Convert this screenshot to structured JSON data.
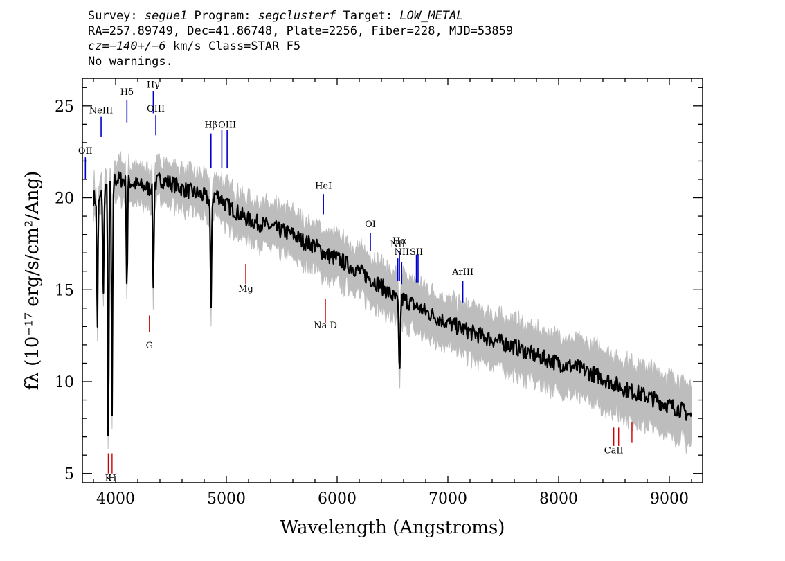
{
  "header": {
    "line1": {
      "survey_label": "Survey: ",
      "survey": "segue1",
      "program_label": " Program: ",
      "program": "segclusterf",
      "target_label": " Target: ",
      "target": "LOW_METAL"
    },
    "line2": "RA=257.89749, Dec=41.86748, Plate=2256, Fiber=228, MJD=53859",
    "line3": {
      "cz": "cz=−140+/−6",
      "rest": " km/s Class=STAR F5"
    },
    "line4": "No warnings."
  },
  "chart_data": {
    "type": "line",
    "xlabel": "Wavelength (Angstroms)",
    "ylabel": "fλ (10⁻¹⁷ erg/s/cm²/Ang)",
    "xlim": [
      3700,
      9300
    ],
    "ylim": [
      4.5,
      26.5
    ],
    "x_ticks": [
      4000,
      5000,
      6000,
      7000,
      8000,
      9000
    ],
    "y_ticks": [
      5,
      10,
      15,
      20,
      25
    ],
    "grid": false,
    "colors": {
      "flux": "#000000",
      "error_band": "#bdbdbd",
      "emission_line": "#0000cc",
      "absorption_line": "#cc0000"
    },
    "series": [
      {
        "x": [
          3800,
          3850,
          3900,
          3950,
          4000,
          4050,
          4100,
          4150,
          4200,
          4250,
          4300,
          4350,
          4400,
          4450,
          4500,
          4600,
          4700,
          4800,
          4861,
          4900,
          4950,
          5000,
          5100,
          5200,
          5300,
          5400,
          5500,
          5600,
          5700,
          5800,
          5900,
          6000,
          6200,
          6400,
          6562,
          6600,
          6800,
          7000,
          7200,
          7400,
          7600,
          7800,
          8000,
          8200,
          8400,
          8600,
          8800,
          9000,
          9100,
          9200
        ],
        "y": [
          20.0,
          19.8,
          20.5,
          20.8,
          21.0,
          21.0,
          20.9,
          20.8,
          20.7,
          20.6,
          20.5,
          20.7,
          21.0,
          20.9,
          20.8,
          20.5,
          20.3,
          20.1,
          19.8,
          20.2,
          20.0,
          19.6,
          19.2,
          18.8,
          18.6,
          18.4,
          18.2,
          18.0,
          17.6,
          17.4,
          16.9,
          16.7,
          16.0,
          15.2,
          14.3,
          14.5,
          13.8,
          13.2,
          12.7,
          12.3,
          11.9,
          11.4,
          11.0,
          10.7,
          10.2,
          9.6,
          9.2,
          8.7,
          8.5,
          8.1
        ]
      }
    ],
    "absorption_dips": [
      {
        "x": 3835,
        "y": 13.0
      },
      {
        "x": 3889,
        "y": 14.5
      },
      {
        "x": 3934,
        "y": 6.3
      },
      {
        "x": 3968,
        "y": 7.8
      },
      {
        "x": 4102,
        "y": 15.0
      },
      {
        "x": 4340,
        "y": 15.0
      },
      {
        "x": 4861,
        "y": 13.5
      },
      {
        "x": 6563,
        "y": 10.5
      }
    ],
    "emission_lines": [
      {
        "label": "OII",
        "x": 3727,
        "y0": 21.0,
        "y1": 22.2,
        "label_y": 22.4
      },
      {
        "label": "NeIII",
        "x": 3869,
        "y0": 23.3,
        "y1": 24.4,
        "label_y": 24.6
      },
      {
        "label": "Hδ",
        "x": 4102,
        "y0": 24.1,
        "y1": 25.3,
        "label_y": 25.6
      },
      {
        "label": "Hγ",
        "x": 4340,
        "y0": 24.6,
        "y1": 25.8,
        "label_y": 26.0
      },
      {
        "label": "OIII",
        "x": 4363,
        "y0": 23.4,
        "y1": 24.5,
        "label_y": 24.7
      },
      {
        "label": "Hβ",
        "x": 4861,
        "y0": 21.6,
        "y1": 23.5,
        "label_y": 23.8
      },
      {
        "label": "OIII",
        "x": 4959,
        "y0": 21.6,
        "y1": 23.7,
        "label_y": null
      },
      {
        "label": "OIII",
        "x": 5007,
        "y0": 21.6,
        "y1": 23.7,
        "label_y": 23.8
      },
      {
        "label": "HeI",
        "x": 5876,
        "y0": 19.1,
        "y1": 20.2,
        "label_y": 20.5
      },
      {
        "label": "OI",
        "x": 6300,
        "y0": 17.1,
        "y1": 18.1,
        "label_y": 18.4
      },
      {
        "label": "NII",
        "x": 6548,
        "y0": 15.5,
        "y1": 16.7,
        "label_y": 17.3
      },
      {
        "label": "Hα",
        "x": 6563,
        "y0": 15.5,
        "y1": 17.1,
        "label_y": 17.5
      },
      {
        "label": "NII",
        "x": 6583,
        "y0": 15.3,
        "y1": 16.5,
        "label_y": 16.9
      },
      {
        "label": "SII",
        "x": 6716,
        "y0": 15.4,
        "y1": 16.9,
        "label_y": 16.9
      },
      {
        "label": "SII",
        "x": 6731,
        "y0": 15.4,
        "y1": 16.9,
        "label_y": null
      },
      {
        "label": "ArIII",
        "x": 7135,
        "y0": 14.3,
        "y1": 15.5,
        "label_y": 15.8
      }
    ],
    "absorption_lines": [
      {
        "label": "K",
        "x": 3934,
        "y0": 5.0,
        "y1": 6.1,
        "label_y": 4.6
      },
      {
        "label": "H",
        "x": 3968,
        "y0": 5.0,
        "y1": 6.1,
        "label_y": 4.6
      },
      {
        "label": "G",
        "x": 4305,
        "y0": 12.7,
        "y1": 13.6,
        "label_y": 11.8
      },
      {
        "label": "Mg",
        "x": 5175,
        "y0": 15.3,
        "y1": 16.4,
        "label_y": 14.9
      },
      {
        "label": "Na  D",
        "x": 5894,
        "y0": 13.2,
        "y1": 14.5,
        "label_y": 12.9
      },
      {
        "label": "CaII",
        "x": 8498,
        "y0": 6.5,
        "y1": 7.5,
        "label_y": 6.1
      },
      {
        "label": "CaII",
        "x": 8542,
        "y0": 6.5,
        "y1": 7.5,
        "label_y": null
      },
      {
        "label": "CaII",
        "x": 8662,
        "y0": 6.7,
        "y1": 7.8,
        "label_y": null
      }
    ]
  }
}
